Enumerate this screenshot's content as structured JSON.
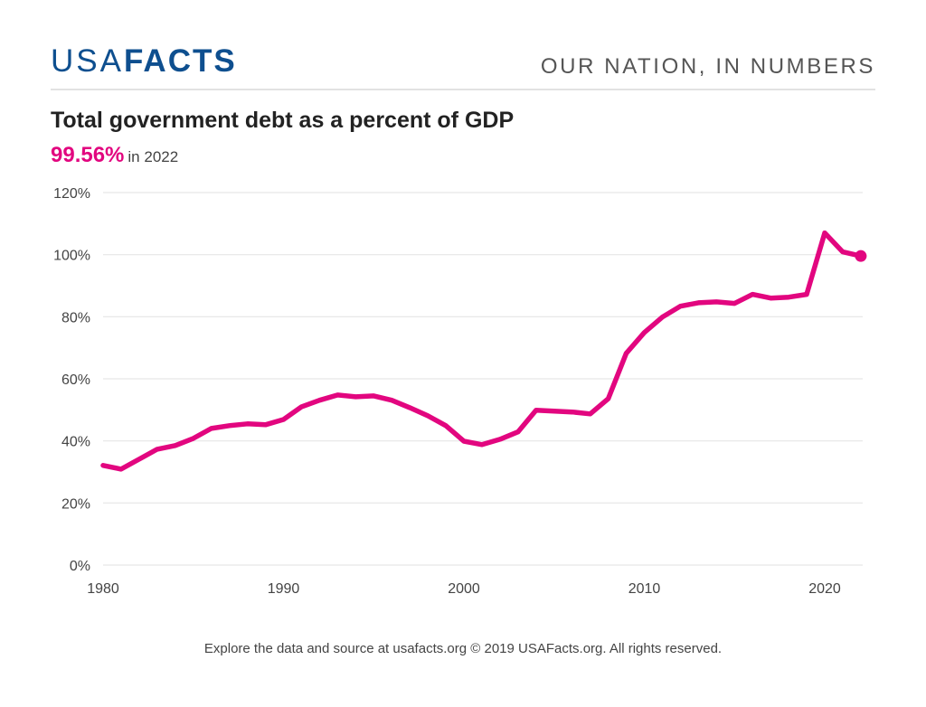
{
  "header": {
    "logo_light": "USA",
    "logo_bold": "FACTS",
    "tagline": "OUR NATION, IN NUMBERS"
  },
  "headline": {
    "title": "Total government debt as a percent of GDP",
    "value": "99.56%",
    "period": "in 2022"
  },
  "footer": {
    "text": "Explore the data and source at usafacts.org © 2019 USAFacts.org. All rights reserved."
  },
  "colors": {
    "line": "#e2067f",
    "brand": "#0e4f8f",
    "grid": "#e6e6e6",
    "tick_text": "#444444"
  },
  "chart_data": {
    "type": "line",
    "title": "Total government debt as a percent of GDP",
    "xlabel": "",
    "ylabel": "",
    "xlim": [
      1980,
      2022
    ],
    "ylim": [
      0,
      120
    ],
    "grid": true,
    "legend": "none",
    "x_ticks": [
      1980,
      1990,
      2000,
      2010,
      2020
    ],
    "x_tick_labels": [
      "1980",
      "1990",
      "2000",
      "2010",
      "2020"
    ],
    "y_ticks": [
      0,
      20,
      40,
      60,
      80,
      100,
      120
    ],
    "y_tick_labels": [
      "0%",
      "20%",
      "40%",
      "60%",
      "80%",
      "100%",
      "120%"
    ],
    "series": [
      {
        "name": "Total government debt (% of GDP)",
        "x": [
          1980,
          1981,
          1982,
          1983,
          1984,
          1985,
          1986,
          1987,
          1988,
          1989,
          1990,
          1991,
          1992,
          1993,
          1994,
          1995,
          1996,
          1997,
          1998,
          1999,
          2000,
          2001,
          2002,
          2003,
          2004,
          2005,
          2006,
          2007,
          2008,
          2009,
          2010,
          2011,
          2012,
          2013,
          2014,
          2015,
          2016,
          2017,
          2018,
          2019,
          2020,
          2021,
          2022
        ],
        "values": [
          32.1,
          30.9,
          34.1,
          37.3,
          38.5,
          40.8,
          44.0,
          44.9,
          45.5,
          45.2,
          46.9,
          51.0,
          53.1,
          54.8,
          54.2,
          54.5,
          53.1,
          50.7,
          48.1,
          44.9,
          39.9,
          38.8,
          40.5,
          42.9,
          49.9,
          49.6,
          49.3,
          48.7,
          53.6,
          68.2,
          74.9,
          79.9,
          83.4,
          84.5,
          84.8,
          84.3,
          87.2,
          86.0,
          86.3,
          87.2,
          107.0,
          100.9,
          99.56
        ],
        "highlight_last_point": true
      }
    ]
  }
}
